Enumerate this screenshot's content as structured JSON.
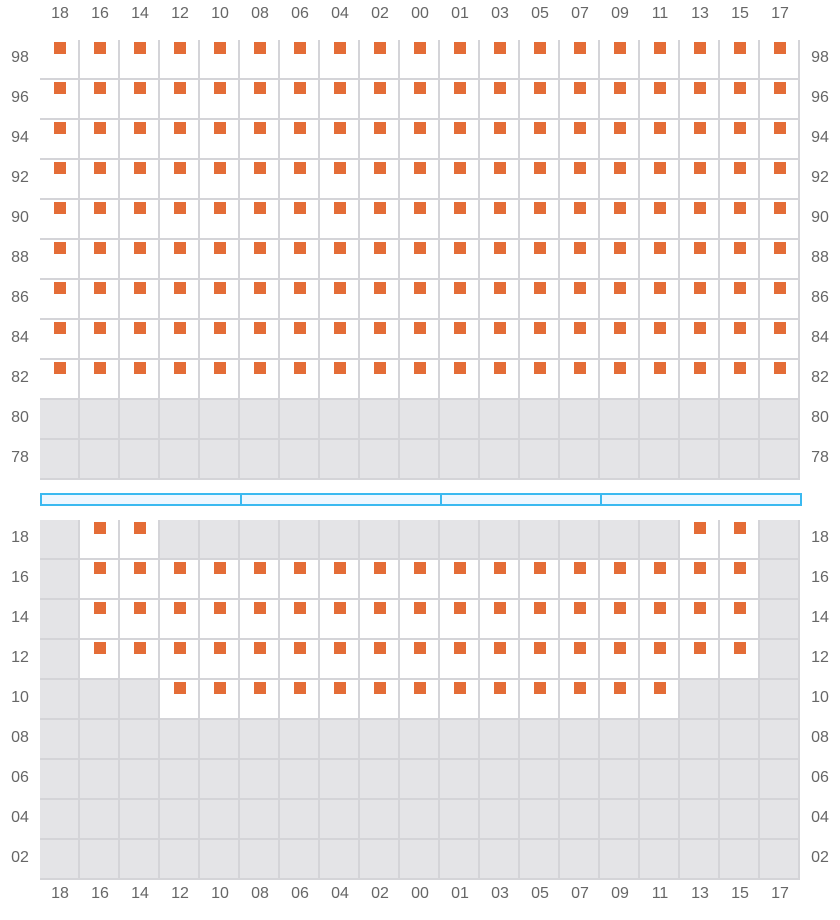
{
  "columns": [
    "18",
    "16",
    "14",
    "12",
    "10",
    "08",
    "06",
    "04",
    "02",
    "00",
    "01",
    "03",
    "05",
    "07",
    "09",
    "11",
    "13",
    "15",
    "17"
  ],
  "colors": {
    "seat": "#e46c36",
    "open_cell": "#ffffff",
    "blocked_cell": "#e4e4e7",
    "grid_line": "#d4d4d8",
    "divider": "#3bb9f0"
  },
  "upper_section": {
    "rows": [
      {
        "label": "98",
        "seats": "all"
      },
      {
        "label": "96",
        "seats": "all"
      },
      {
        "label": "94",
        "seats": "all"
      },
      {
        "label": "92",
        "seats": "all"
      },
      {
        "label": "90",
        "seats": "all"
      },
      {
        "label": "88",
        "seats": "all"
      },
      {
        "label": "86",
        "seats": "all"
      },
      {
        "label": "84",
        "seats": "all"
      },
      {
        "label": "82",
        "seats": "all"
      },
      {
        "label": "80",
        "seats": []
      },
      {
        "label": "78",
        "seats": []
      }
    ]
  },
  "divider_segments": 4,
  "lower_section": {
    "rows": [
      {
        "label": "18",
        "seats": [
          "16",
          "14",
          "13",
          "15"
        ]
      },
      {
        "label": "16",
        "seats": [
          "16",
          "14",
          "12",
          "10",
          "08",
          "06",
          "04",
          "02",
          "00",
          "01",
          "03",
          "05",
          "07",
          "09",
          "11",
          "13",
          "15"
        ]
      },
      {
        "label": "14",
        "seats": [
          "16",
          "14",
          "12",
          "10",
          "08",
          "06",
          "04",
          "02",
          "00",
          "01",
          "03",
          "05",
          "07",
          "09",
          "11",
          "13",
          "15"
        ]
      },
      {
        "label": "12",
        "seats": [
          "16",
          "14",
          "12",
          "10",
          "08",
          "06",
          "04",
          "02",
          "00",
          "01",
          "03",
          "05",
          "07",
          "09",
          "11",
          "13",
          "15"
        ]
      },
      {
        "label": "10",
        "seats": [
          "12",
          "10",
          "08",
          "06",
          "04",
          "02",
          "00",
          "01",
          "03",
          "05",
          "07",
          "09",
          "11"
        ]
      },
      {
        "label": "08",
        "seats": []
      },
      {
        "label": "06",
        "seats": []
      },
      {
        "label": "04",
        "seats": []
      },
      {
        "label": "02",
        "seats": []
      }
    ]
  }
}
